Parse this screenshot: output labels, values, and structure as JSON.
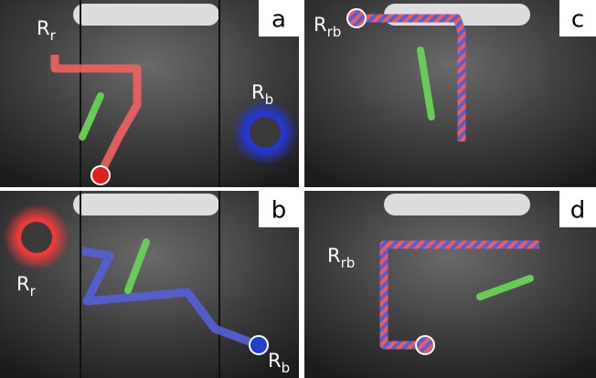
{
  "panels": [
    {
      "letter": "a",
      "labels": [
        {
          "main": "R",
          "sub": "r"
        },
        {
          "main": "R",
          "sub": "b"
        }
      ]
    },
    {
      "letter": "b",
      "labels": [
        {
          "main": "R",
          "sub": "r"
        },
        {
          "main": "R",
          "sub": "b"
        }
      ]
    },
    {
      "letter": "c",
      "labels": [
        {
          "main": "R",
          "sub": "rb"
        }
      ]
    },
    {
      "letter": "d",
      "labels": [
        {
          "main": "R",
          "sub": "rb"
        }
      ]
    }
  ]
}
